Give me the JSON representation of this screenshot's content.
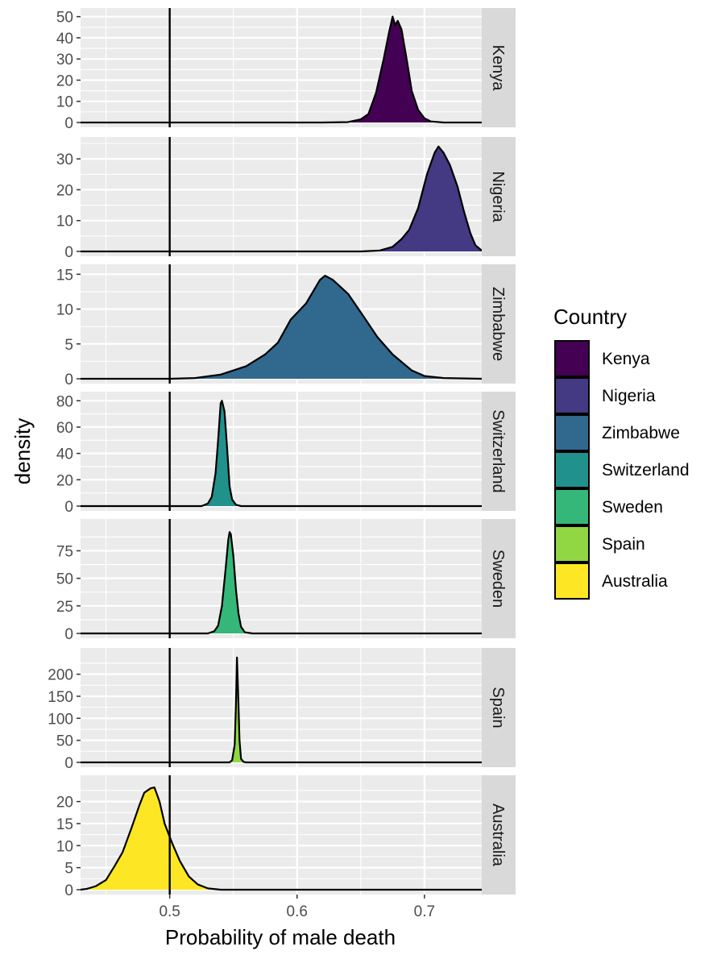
{
  "chart_data": {
    "type": "area",
    "subtype": "faceted-density",
    "xlabel": "Probability of male death",
    "ylabel": "density",
    "xlim": [
      0.43,
      0.745
    ],
    "x_ticks": [
      0.5,
      0.6,
      0.7
    ],
    "x_tick_labels": [
      "0.5",
      "0.6",
      "0.7"
    ],
    "reference_line_x": 0.5,
    "grid": true,
    "legend": {
      "title": "Country",
      "position": "right",
      "entries": [
        "Kenya",
        "Nigeria",
        "Zimbabwe",
        "Switzerland",
        "Sweden",
        "Spain",
        "Australia"
      ]
    },
    "series": [
      {
        "name": "Kenya",
        "color": "#440154",
        "ylim": [
          0,
          51
        ],
        "y_ticks": [
          0,
          10,
          20,
          30,
          40,
          50
        ],
        "points": [
          [
            0.43,
            0
          ],
          [
            0.62,
            0
          ],
          [
            0.64,
            0.2
          ],
          [
            0.65,
            1.5
          ],
          [
            0.656,
            4
          ],
          [
            0.662,
            14
          ],
          [
            0.668,
            30
          ],
          [
            0.672,
            42
          ],
          [
            0.675,
            50
          ],
          [
            0.677,
            46
          ],
          [
            0.679,
            48
          ],
          [
            0.682,
            44
          ],
          [
            0.686,
            30
          ],
          [
            0.69,
            15
          ],
          [
            0.695,
            6
          ],
          [
            0.7,
            2
          ],
          [
            0.705,
            0.5
          ],
          [
            0.715,
            0
          ],
          [
            0.745,
            0
          ]
        ]
      },
      {
        "name": "Nigeria",
        "color": "#443983",
        "ylim": [
          0,
          35
        ],
        "y_ticks": [
          0,
          10,
          20,
          30
        ],
        "points": [
          [
            0.43,
            0
          ],
          [
            0.65,
            0
          ],
          [
            0.665,
            0.3
          ],
          [
            0.675,
            1.5
          ],
          [
            0.682,
            4
          ],
          [
            0.688,
            7
          ],
          [
            0.695,
            14
          ],
          [
            0.702,
            25
          ],
          [
            0.708,
            32
          ],
          [
            0.711,
            34
          ],
          [
            0.715,
            32
          ],
          [
            0.72,
            28
          ],
          [
            0.726,
            21
          ],
          [
            0.731,
            13
          ],
          [
            0.736,
            6
          ],
          [
            0.74,
            2
          ],
          [
            0.745,
            0.3
          ]
        ]
      },
      {
        "name": "Zimbabwe",
        "color": "#31688E",
        "ylim": [
          0,
          15.5
        ],
        "y_ticks": [
          0,
          5,
          10,
          15
        ],
        "points": [
          [
            0.43,
            0
          ],
          [
            0.5,
            0
          ],
          [
            0.52,
            0.1
          ],
          [
            0.54,
            0.6
          ],
          [
            0.56,
            1.8
          ],
          [
            0.575,
            3.5
          ],
          [
            0.585,
            5.2
          ],
          [
            0.595,
            8.5
          ],
          [
            0.607,
            10.8
          ],
          [
            0.618,
            14.2
          ],
          [
            0.622,
            14.8
          ],
          [
            0.628,
            14.2
          ],
          [
            0.64,
            12.2
          ],
          [
            0.652,
            9.0
          ],
          [
            0.663,
            6.0
          ],
          [
            0.675,
            3.5
          ],
          [
            0.69,
            1.2
          ],
          [
            0.7,
            0.4
          ],
          [
            0.715,
            0.1
          ],
          [
            0.745,
            0
          ]
        ]
      },
      {
        "name": "Switzerland",
        "color": "#21918C",
        "ylim": [
          0,
          82
        ],
        "y_ticks": [
          0,
          20,
          40,
          60,
          80
        ],
        "points": [
          [
            0.43,
            0
          ],
          [
            0.525,
            0
          ],
          [
            0.53,
            2
          ],
          [
            0.533,
            7
          ],
          [
            0.536,
            25
          ],
          [
            0.538,
            50
          ],
          [
            0.54,
            78
          ],
          [
            0.541,
            80
          ],
          [
            0.543,
            72
          ],
          [
            0.545,
            45
          ],
          [
            0.547,
            15
          ],
          [
            0.549,
            5
          ],
          [
            0.552,
            1
          ],
          [
            0.556,
            0
          ],
          [
            0.745,
            0
          ]
        ]
      },
      {
        "name": "Sweden",
        "color": "#35B779",
        "ylim": [
          0,
          98
        ],
        "y_ticks": [
          0,
          25,
          50,
          75
        ],
        "points": [
          [
            0.43,
            0
          ],
          [
            0.53,
            0
          ],
          [
            0.535,
            2
          ],
          [
            0.538,
            7
          ],
          [
            0.541,
            25
          ],
          [
            0.544,
            60
          ],
          [
            0.546,
            85
          ],
          [
            0.547,
            92
          ],
          [
            0.548,
            90
          ],
          [
            0.55,
            70
          ],
          [
            0.552,
            40
          ],
          [
            0.554,
            18
          ],
          [
            0.556,
            6
          ],
          [
            0.559,
            1
          ],
          [
            0.565,
            0
          ],
          [
            0.745,
            0
          ]
        ]
      },
      {
        "name": "Spain",
        "color": "#90D743",
        "ylim": [
          0,
          245
        ],
        "y_ticks": [
          0,
          50,
          100,
          150,
          200
        ],
        "points": [
          [
            0.43,
            0
          ],
          [
            0.547,
            0
          ],
          [
            0.549,
            5
          ],
          [
            0.551,
            40
          ],
          [
            0.552,
            130
          ],
          [
            0.5528,
            238
          ],
          [
            0.5538,
            150
          ],
          [
            0.5548,
            50
          ],
          [
            0.556,
            8
          ],
          [
            0.558,
            1
          ],
          [
            0.56,
            0
          ],
          [
            0.745,
            0
          ]
        ]
      },
      {
        "name": "Australia",
        "color": "#FDE725",
        "ylim": [
          0,
          24.5
        ],
        "y_ticks": [
          0,
          5,
          10,
          15,
          20
        ],
        "points": [
          [
            0.43,
            0
          ],
          [
            0.435,
            0.2
          ],
          [
            0.442,
            0.8
          ],
          [
            0.45,
            2.2
          ],
          [
            0.457,
            5.5
          ],
          [
            0.463,
            8.5
          ],
          [
            0.47,
            14
          ],
          [
            0.476,
            19
          ],
          [
            0.48,
            22
          ],
          [
            0.485,
            23
          ],
          [
            0.488,
            23.2
          ],
          [
            0.492,
            20
          ],
          [
            0.496,
            15
          ],
          [
            0.502,
            10.5
          ],
          [
            0.508,
            6.5
          ],
          [
            0.515,
            3
          ],
          [
            0.522,
            1.2
          ],
          [
            0.53,
            0.3
          ],
          [
            0.54,
            0
          ],
          [
            0.745,
            0
          ]
        ]
      }
    ]
  }
}
